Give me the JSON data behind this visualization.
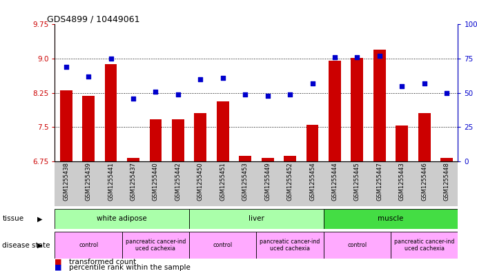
{
  "title": "GDS4899 / 10449061",
  "samples": [
    "GSM1255438",
    "GSM1255439",
    "GSM1255441",
    "GSM1255437",
    "GSM1255440",
    "GSM1255442",
    "GSM1255450",
    "GSM1255451",
    "GSM1255453",
    "GSM1255449",
    "GSM1255452",
    "GSM1255454",
    "GSM1255444",
    "GSM1255445",
    "GSM1255447",
    "GSM1255443",
    "GSM1255446",
    "GSM1255448"
  ],
  "bar_values": [
    8.3,
    8.19,
    8.88,
    6.82,
    7.67,
    7.67,
    7.8,
    8.07,
    6.87,
    6.83,
    6.87,
    7.55,
    8.95,
    9.01,
    9.2,
    7.53,
    7.8,
    6.82
  ],
  "dot_values": [
    69,
    62,
    75,
    46,
    51,
    49,
    60,
    61,
    49,
    48,
    49,
    57,
    76,
    76,
    77,
    55,
    57,
    50
  ],
  "ylim_left": [
    6.75,
    9.75
  ],
  "ylim_right": [
    0,
    100
  ],
  "yticks_left": [
    6.75,
    7.5,
    8.25,
    9.0,
    9.75
  ],
  "yticks_right": [
    0,
    25,
    50,
    75,
    100
  ],
  "bar_color": "#cc0000",
  "dot_color": "#0000cc",
  "tissue_groups": [
    {
      "label": "white adipose",
      "start": 0,
      "end": 6,
      "color": "#aaffaa"
    },
    {
      "label": "liver",
      "start": 6,
      "end": 12,
      "color": "#aaffaa"
    },
    {
      "label": "muscle",
      "start": 12,
      "end": 18,
      "color": "#44dd44"
    }
  ],
  "disease_groups": [
    {
      "label": "control",
      "start": 0,
      "end": 3,
      "color": "#ffaaff"
    },
    {
      "label": "pancreatic cancer-ind\nuced cachexia",
      "start": 3,
      "end": 6,
      "color": "#ffaaff"
    },
    {
      "label": "control",
      "start": 6,
      "end": 9,
      "color": "#ffaaff"
    },
    {
      "label": "pancreatic cancer-ind\nuced cachexia",
      "start": 9,
      "end": 12,
      "color": "#ffaaff"
    },
    {
      "label": "control",
      "start": 12,
      "end": 15,
      "color": "#ffaaff"
    },
    {
      "label": "pancreatic cancer-ind\nuced cachexia",
      "start": 15,
      "end": 18,
      "color": "#ffaaff"
    }
  ],
  "legend_bar_label": "transformed count",
  "legend_dot_label": "percentile rank within the sample",
  "tissue_label": "tissue",
  "disease_label": "disease state",
  "xtick_bg_color": "#cccccc",
  "grid_yticks": [
    9.0,
    8.25,
    7.5
  ],
  "dot_size": 18
}
